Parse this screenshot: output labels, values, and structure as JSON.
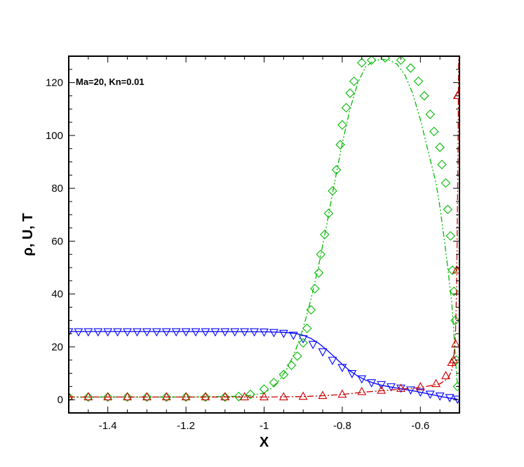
{
  "chart_data": {
    "type": "line",
    "title": "",
    "xlabel": "X",
    "ylabel": "ρ, U, T",
    "annotation": "Ma=20, Kn=0.01",
    "xlim": [
      -1.5,
      -0.5
    ],
    "ylim": [
      -5,
      130
    ],
    "xticks": [
      -1.4,
      -1.2,
      -1,
      -0.8,
      -0.6
    ],
    "xtick_labels": [
      "-1.4",
      "-1.2",
      "-1",
      "-0.8",
      "-0.6"
    ],
    "yticks": [
      0,
      20,
      40,
      60,
      80,
      100,
      120
    ],
    "ytick_labels": [
      "0",
      "20",
      "40",
      "60",
      "80",
      "100",
      "120"
    ],
    "grid": false,
    "series": [
      {
        "line_color": "#0000ff",
        "marker": "triangle-down",
        "dash": "solid",
        "line_x": [
          -1.5,
          -1.2,
          -1.0,
          -0.95,
          -0.92,
          -0.9,
          -0.88,
          -0.86,
          -0.84,
          -0.82,
          -0.8,
          -0.78,
          -0.76,
          -0.74,
          -0.72,
          -0.7,
          -0.68,
          -0.66,
          -0.64,
          -0.62,
          -0.6,
          -0.58,
          -0.56,
          -0.54,
          -0.52,
          -0.505
        ],
        "line_y": [
          25.8,
          25.8,
          25.7,
          25.5,
          25.1,
          24.4,
          23.2,
          21.3,
          18.9,
          16.2,
          13.4,
          10.9,
          8.9,
          7.4,
          6.3,
          5.5,
          4.9,
          4.4,
          3.9,
          3.4,
          2.8,
          2.2,
          1.6,
          1.0,
          0.5,
          0.2
        ],
        "x": [
          -1.5,
          -1.475,
          -1.45,
          -1.425,
          -1.4,
          -1.375,
          -1.35,
          -1.325,
          -1.3,
          -1.275,
          -1.25,
          -1.225,
          -1.2,
          -1.175,
          -1.15,
          -1.125,
          -1.1,
          -1.075,
          -1.05,
          -1.025,
          -1.0,
          -0.975,
          -0.95,
          -0.925,
          -0.9,
          -0.875,
          -0.85,
          -0.825,
          -0.8,
          -0.775,
          -0.75,
          -0.725,
          -0.7,
          -0.675,
          -0.65,
          -0.625,
          -0.6,
          -0.575,
          -0.55,
          -0.525,
          -0.505
        ],
        "y": [
          25.8,
          25.8,
          25.8,
          25.8,
          25.8,
          25.8,
          25.8,
          25.8,
          25.8,
          25.8,
          25.8,
          25.8,
          25.8,
          25.8,
          25.8,
          25.8,
          25.8,
          25.8,
          25.8,
          25.8,
          25.7,
          25.5,
          25.2,
          24.5,
          23.2,
          21.0,
          18.2,
          15.0,
          12.3,
          10.0,
          8.0,
          6.5,
          5.8,
          5.0,
          4.5,
          3.8,
          3.0,
          2.2,
          1.5,
          0.9,
          0.3
        ]
      },
      {
        "line_color": "#00bb00",
        "marker": "diamond",
        "dash": "dash-dot-dot",
        "line_x": [
          -1.5,
          -1.2,
          -1.05,
          -1.0,
          -0.98,
          -0.96,
          -0.94,
          -0.92,
          -0.9,
          -0.88,
          -0.86,
          -0.84,
          -0.82,
          -0.8,
          -0.78,
          -0.76,
          -0.74,
          -0.72,
          -0.7,
          -0.68,
          -0.66,
          -0.64,
          -0.62,
          -0.6,
          -0.58,
          -0.56,
          -0.55,
          -0.54,
          -0.53,
          -0.52,
          -0.515,
          -0.51,
          -0.505
        ],
        "line_y": [
          1.0,
          1.0,
          1.3,
          2.5,
          4.5,
          7.5,
          12.0,
          18.5,
          27.0,
          38.0,
          51.0,
          66.0,
          82.0,
          97.0,
          110.0,
          120.0,
          126.0,
          128.2,
          128.8,
          128.5,
          127.0,
          123.0,
          116.0,
          106.0,
          94.0,
          82.0,
          73.0,
          62.0,
          50.0,
          37.0,
          27.0,
          15.0,
          5.0
        ],
        "x": [
          -1.5,
          -1.45,
          -1.4,
          -1.35,
          -1.3,
          -1.25,
          -1.2,
          -1.15,
          -1.1,
          -1.065,
          -1.035,
          -1.0,
          -0.975,
          -0.95,
          -0.93,
          -0.915,
          -0.9,
          -0.89,
          -0.88,
          -0.87,
          -0.86,
          -0.855,
          -0.845,
          -0.835,
          -0.825,
          -0.815,
          -0.805,
          -0.8,
          -0.79,
          -0.78,
          -0.77,
          -0.75,
          -0.725,
          -0.69,
          -0.65,
          -0.625,
          -0.605,
          -0.59,
          -0.575,
          -0.565,
          -0.55,
          -0.545,
          -0.535,
          -0.53,
          -0.523,
          -0.518,
          -0.514,
          -0.511,
          -0.508,
          -0.505
        ],
        "y": [
          1.0,
          1.0,
          1.0,
          1.0,
          1.0,
          1.0,
          1.0,
          1.0,
          1.0,
          1.2,
          2.0,
          4.0,
          6.5,
          9.5,
          13.0,
          16.5,
          21.5,
          27.0,
          34.0,
          42.0,
          48.0,
          55.0,
          62.5,
          70.5,
          79.0,
          87.0,
          96.5,
          104.0,
          110.5,
          116.0,
          120.5,
          127.5,
          128.5,
          129.3,
          128.5,
          125.5,
          120.5,
          115.0,
          108.0,
          101.5,
          95.5,
          89.0,
          82.0,
          72.0,
          62.0,
          49.0,
          41.0,
          30.0,
          15.0,
          5.0
        ]
      },
      {
        "line_color": "#cc0000",
        "marker": "triangle-up",
        "dash": "dash-dot",
        "line_x": [
          -1.5,
          -1.0,
          -0.95,
          -0.9,
          -0.85,
          -0.8,
          -0.75,
          -0.7,
          -0.65,
          -0.6,
          -0.55,
          -0.53,
          -0.52,
          -0.515,
          -0.51,
          -0.507,
          -0.504,
          -0.502
        ],
        "line_y": [
          1.0,
          1.0,
          1.1,
          1.2,
          1.5,
          2.0,
          2.8,
          3.4,
          4.0,
          4.6,
          6.0,
          8.0,
          11.0,
          15.0,
          25.0,
          45.0,
          90.0,
          130.0
        ],
        "x": [
          -1.5,
          -1.45,
          -1.4,
          -1.35,
          -1.3,
          -1.25,
          -1.2,
          -1.15,
          -1.1,
          -1.05,
          -1.0,
          -0.95,
          -0.9,
          -0.85,
          -0.8,
          -0.75,
          -0.7,
          -0.65,
          -0.6,
          -0.56,
          -0.535,
          -0.52,
          -0.515,
          -0.51,
          -0.507,
          -0.505,
          -0.504
        ],
        "y": [
          1.0,
          1.0,
          1.0,
          1.0,
          1.0,
          1.0,
          1.0,
          1.0,
          1.0,
          1.0,
          1.0,
          1.0,
          1.2,
          1.5,
          2.0,
          3.0,
          3.5,
          4.2,
          4.8,
          6.0,
          9.0,
          14.0,
          15.0,
          21.0,
          49.0,
          115.0,
          115.0
        ]
      }
    ]
  }
}
